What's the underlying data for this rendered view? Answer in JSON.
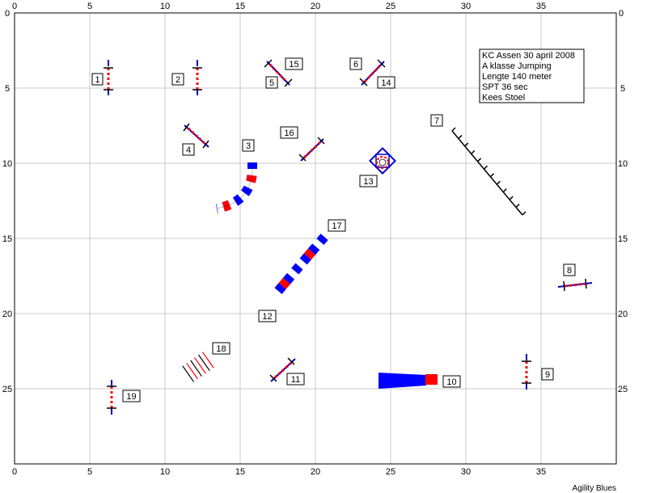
{
  "course": {
    "info_lines": [
      "KC Assen 30 april 2008",
      "A klasse Jumping",
      "Lengte 140 meter",
      "SPT 36 sec",
      "Kees Stoel"
    ],
    "credit": "Agility Blues",
    "x_ticks": [
      "0",
      "5",
      "10",
      "15",
      "20",
      "25",
      "30",
      "35"
    ],
    "y_ticks": [
      "0",
      "5",
      "10",
      "15",
      "20",
      "25"
    ],
    "colors": {
      "grid": "#c8c8c8",
      "pole_blue": "#0000cc",
      "tunnel_red": "#ff0000",
      "tunnel_blue": "#0000ff",
      "frame": "#000000"
    },
    "numbers": [
      "1",
      "2",
      "3",
      "4",
      "5",
      "6",
      "7",
      "8",
      "9",
      "10",
      "11",
      "12",
      "13",
      "14",
      "15",
      "16",
      "17",
      "18",
      "19"
    ]
  }
}
